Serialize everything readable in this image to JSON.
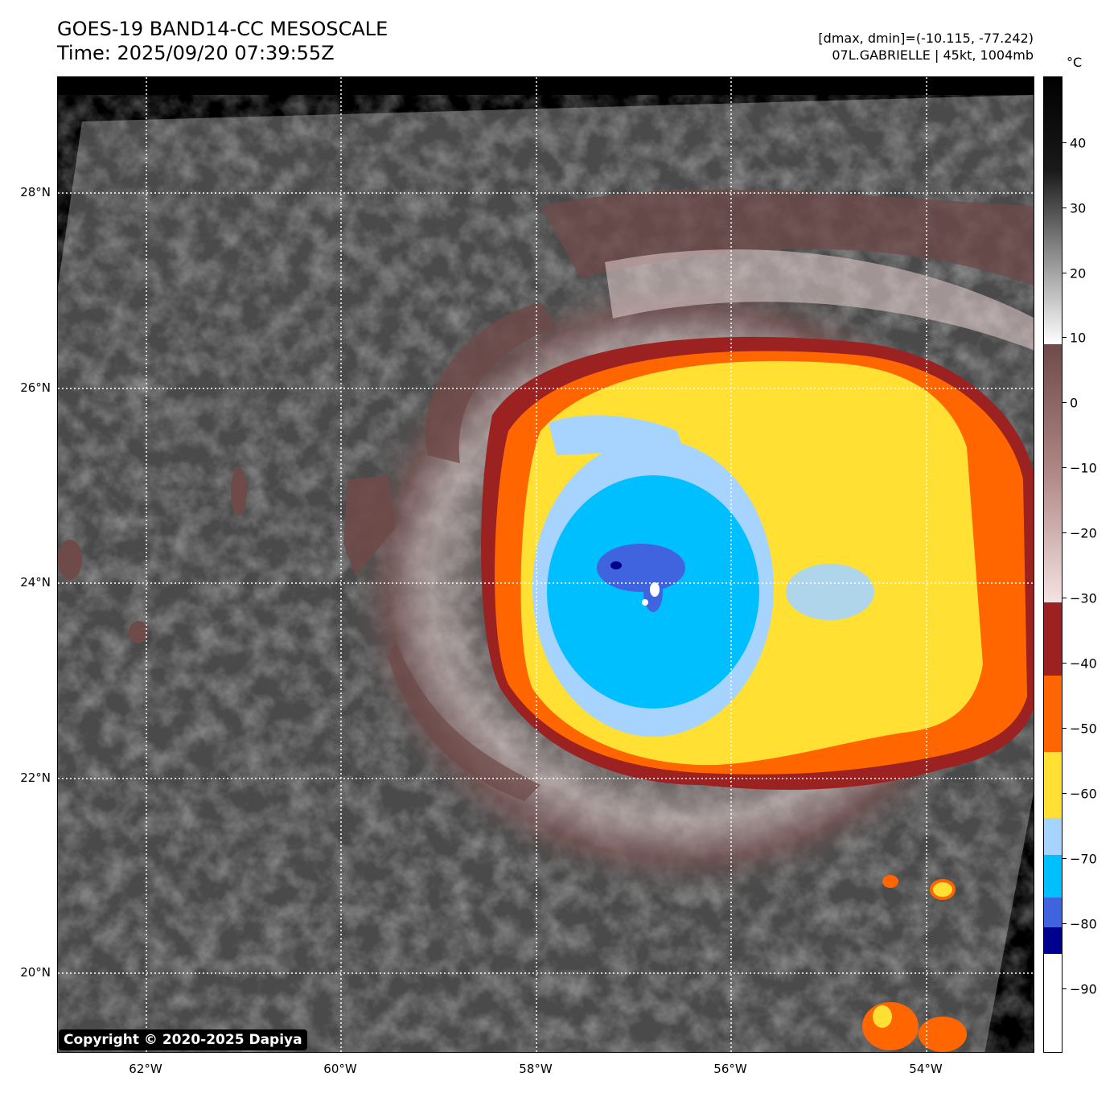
{
  "header": {
    "title_line1": "GOES-19 BAND14-CC MESOSCALE",
    "title_line2": "Time: 2025/09/20 07:39:55Z",
    "range_text": "[dmax, dmin]=(-10.115, -77.242)",
    "storm_text": "07L.GABRIELLE | 45kt, 1004mb"
  },
  "map": {
    "lat_labels": [
      "28°N",
      "26°N",
      "24°N",
      "22°N",
      "20°N"
    ],
    "lon_labels": [
      "62°W",
      "60°W",
      "58°W",
      "56°W",
      "54°W"
    ],
    "copyright": "Copyright © 2020-2025 Dapiya"
  },
  "colorbar": {
    "unit": "°C",
    "ticks": [
      "40",
      "30",
      "20",
      "10",
      "0",
      "−10",
      "−20",
      "−30",
      "−40",
      "−50",
      "−60",
      "−70",
      "−80",
      "−90"
    ],
    "colors": {
      "gray_cloud_top": "#444444",
      "brown_warm": "#6e4a48",
      "pink": "#f2dcdc",
      "dark_red": "#9c2222",
      "orange": "#ff6600",
      "yellow": "#ffe033",
      "light_blue": "#a6d4ff",
      "cyan": "#00bfff",
      "royal_blue": "#4064e0",
      "navy": "#000090",
      "white": "#ffffff"
    }
  }
}
